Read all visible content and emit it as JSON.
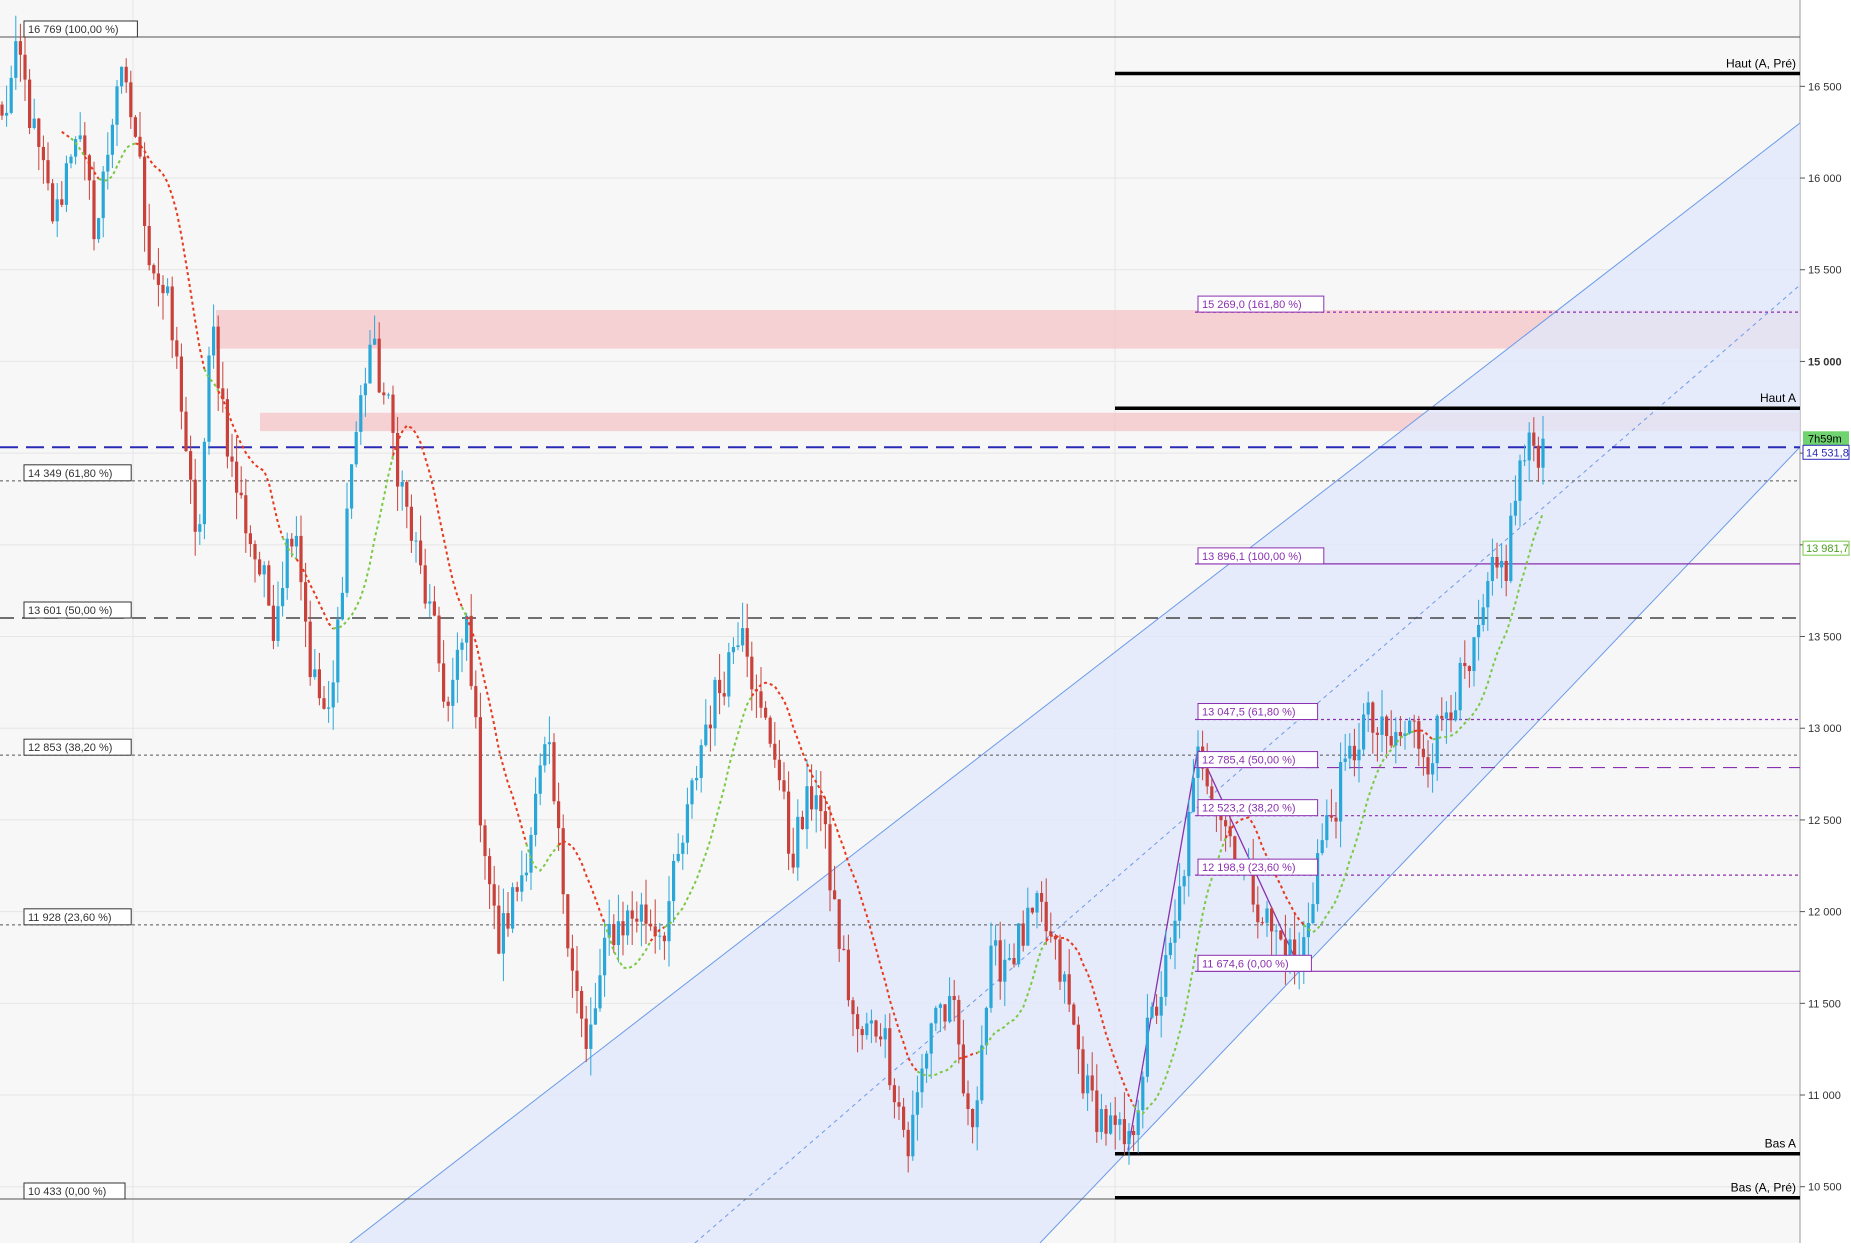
{
  "chart_data": {
    "type": "candlestick",
    "instrument_timer": "7h59m",
    "last_price_label": "14 531,8",
    "ma_price_label": "13 981,7",
    "y_axis": {
      "min": 10250,
      "max": 16970,
      "ticks": [
        {
          "value": 10500,
          "label": "10 500",
          "bold": false
        },
        {
          "value": 11000,
          "label": "11 000",
          "bold": false
        },
        {
          "value": 11500,
          "label": "11 500",
          "bold": false
        },
        {
          "value": 12000,
          "label": "12 000",
          "bold": false
        },
        {
          "value": 12500,
          "label": "12 500",
          "bold": false
        },
        {
          "value": 13000,
          "label": "13 000",
          "bold": false
        },
        {
          "value": 13500,
          "label": "13 500",
          "bold": false
        },
        {
          "value": 14000,
          "label": "14 000",
          "bold": false
        },
        {
          "value": 14500,
          "label": "14 500",
          "bold": false
        },
        {
          "value": 15000,
          "label": "15 000",
          "bold": true
        },
        {
          "value": 15500,
          "label": "15 500",
          "bold": false
        },
        {
          "value": 16000,
          "label": "16 000",
          "bold": false
        },
        {
          "value": 16500,
          "label": "16 500",
          "bold": false
        }
      ]
    },
    "key_levels": [
      {
        "label": "Haut (A, Pré)",
        "value": 16570
      },
      {
        "label": "Haut A",
        "value": 14745
      },
      {
        "label": "Bas A",
        "value": 10680
      },
      {
        "label": "Bas (A, Pré)",
        "value": 10440
      }
    ],
    "left_fibonacci": [
      {
        "label": "16 769 (100,00 %)",
        "value": 16769,
        "style": "solid"
      },
      {
        "label": "14 349 (61,80 %)",
        "value": 14349,
        "style": "dotted"
      },
      {
        "label": "13 601 (50,00 %)",
        "value": 13601,
        "style": "dashed"
      },
      {
        "label": "12 853 (38,20 %)",
        "value": 12853,
        "style": "dotted"
      },
      {
        "label": "11 928 (23,60 %)",
        "value": 11928,
        "style": "dotted"
      },
      {
        "label": "10 433 (0,00 %)",
        "value": 10433,
        "style": "solid"
      }
    ],
    "right_fibonacci": [
      {
        "label": "15 269,0 (161,80 %)",
        "value": 15269,
        "style": "dotted"
      },
      {
        "label": "13 896,1 (100,00 %)",
        "value": 13896.1,
        "style": "solid"
      },
      {
        "label": "13 047,5 (61,80 %)",
        "value": 13047.5,
        "style": "dotted"
      },
      {
        "label": "12 785,4 (50,00 %)",
        "value": 12785.4,
        "style": "dashed"
      },
      {
        "label": "12 523,2 (38,20 %)",
        "value": 12523.2,
        "style": "dotted"
      },
      {
        "label": "12 198,9 (23,60 %)",
        "value": 12198.9,
        "style": "dotted"
      },
      {
        "label": "11 674,6 (0,00 %)",
        "value": 11674.6,
        "style": "solid"
      }
    ],
    "resistance_zones": [
      {
        "from": 15070,
        "to": 15280
      },
      {
        "from": 14620,
        "to": 14720
      }
    ],
    "current_price_line": 14531.8,
    "colors": {
      "bull": "#2aa7d9",
      "bear": "#c9413b",
      "ma_fast": "#e8391d",
      "ma_slow": "#7ac943",
      "fib_right": "#8a2fb0",
      "channel": "#6b9ae8",
      "price_line": "#2a2ab8"
    },
    "key_points": [
      {
        "x": 0,
        "y": 16300
      },
      {
        "x": 14,
        "y": 16680
      },
      {
        "x": 28,
        "y": 16200
      },
      {
        "x": 45,
        "y": 15750
      },
      {
        "x": 62,
        "y": 16300
      },
      {
        "x": 80,
        "y": 15700
      },
      {
        "x": 98,
        "y": 16560
      },
      {
        "x": 112,
        "y": 16300
      },
      {
        "x": 125,
        "y": 15600
      },
      {
        "x": 140,
        "y": 15300
      },
      {
        "x": 152,
        "y": 14800
      },
      {
        "x": 165,
        "y": 13900
      },
      {
        "x": 178,
        "y": 15200
      },
      {
        "x": 195,
        "y": 14400
      },
      {
        "x": 212,
        "y": 14000
      },
      {
        "x": 230,
        "y": 13600
      },
      {
        "x": 248,
        "y": 14200
      },
      {
        "x": 262,
        "y": 13300
      },
      {
        "x": 278,
        "y": 13000
      },
      {
        "x": 295,
        "y": 14400
      },
      {
        "x": 312,
        "y": 15100
      },
      {
        "x": 328,
        "y": 14700
      },
      {
        "x": 345,
        "y": 14100
      },
      {
        "x": 360,
        "y": 13700
      },
      {
        "x": 378,
        "y": 13100
      },
      {
        "x": 395,
        "y": 13600
      },
      {
        "x": 405,
        "y": 12600
      },
      {
        "x": 420,
        "y": 11800
      },
      {
        "x": 440,
        "y": 12200
      },
      {
        "x": 462,
        "y": 12900
      },
      {
        "x": 480,
        "y": 11900
      },
      {
        "x": 495,
        "y": 11200
      },
      {
        "x": 515,
        "y": 11900
      },
      {
        "x": 540,
        "y": 12000
      },
      {
        "x": 560,
        "y": 11900
      },
      {
        "x": 578,
        "y": 12400
      },
      {
        "x": 595,
        "y": 13000
      },
      {
        "x": 612,
        "y": 13300
      },
      {
        "x": 628,
        "y": 13650
      },
      {
        "x": 640,
        "y": 13100
      },
      {
        "x": 655,
        "y": 12900
      },
      {
        "x": 668,
        "y": 12300
      },
      {
        "x": 690,
        "y": 12700
      },
      {
        "x": 708,
        "y": 11900
      },
      {
        "x": 725,
        "y": 11300
      },
      {
        "x": 745,
        "y": 11400
      },
      {
        "x": 768,
        "y": 10700
      },
      {
        "x": 790,
        "y": 11500
      },
      {
        "x": 808,
        "y": 11400
      },
      {
        "x": 820,
        "y": 10750
      },
      {
        "x": 838,
        "y": 11700
      },
      {
        "x": 858,
        "y": 11800
      },
      {
        "x": 880,
        "y": 12000
      },
      {
        "x": 900,
        "y": 11600
      },
      {
        "x": 920,
        "y": 11000
      },
      {
        "x": 940,
        "y": 10800
      },
      {
        "x": 955,
        "y": 10700
      },
      {
        "x": 970,
        "y": 11300
      },
      {
        "x": 992,
        "y": 11800
      },
      {
        "x": 1015,
        "y": 12900
      },
      {
        "x": 1035,
        "y": 12500
      },
      {
        "x": 1055,
        "y": 12200
      },
      {
        "x": 1075,
        "y": 11900
      },
      {
        "x": 1100,
        "y": 11700
      },
      {
        "x": 1115,
        "y": 12300
      },
      {
        "x": 1135,
        "y": 12700
      },
      {
        "x": 1155,
        "y": 13050
      },
      {
        "x": 1175,
        "y": 12900
      },
      {
        "x": 1195,
        "y": 13000
      },
      {
        "x": 1210,
        "y": 12850
      },
      {
        "x": 1225,
        "y": 13150
      },
      {
        "x": 1245,
        "y": 13300
      },
      {
        "x": 1262,
        "y": 13800
      },
      {
        "x": 1275,
        "y": 13900
      },
      {
        "x": 1285,
        "y": 14400
      },
      {
        "x": 1298,
        "y": 14550
      },
      {
        "x": 1308,
        "y": 14530
      }
    ]
  }
}
